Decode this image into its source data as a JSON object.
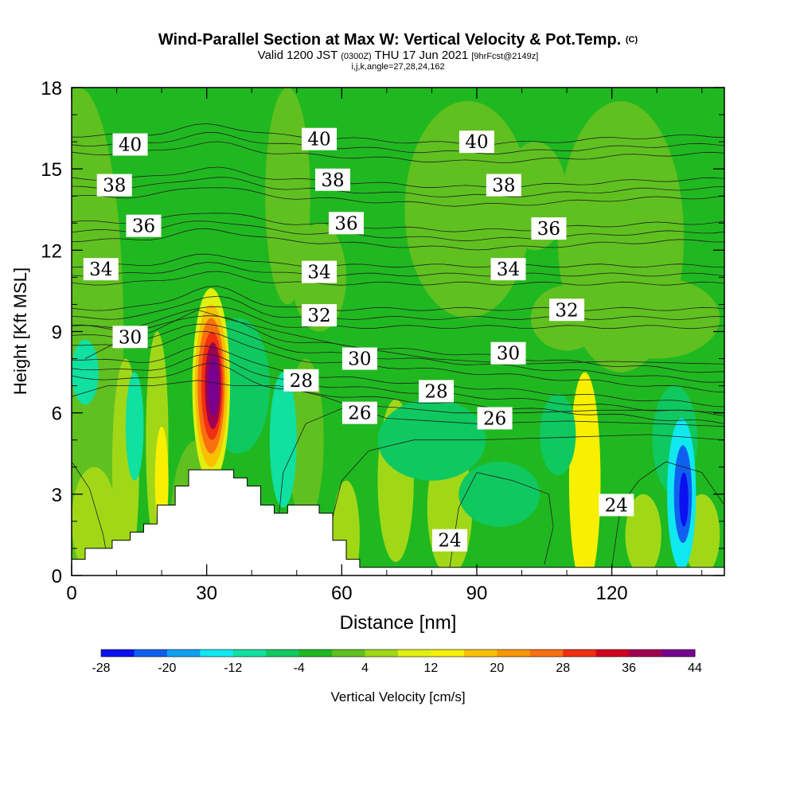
{
  "header": {
    "title": "Wind-Parallel Section at Max W: Vertical Velocity & Pot.Temp.",
    "title_mark": "(C)",
    "subtitle_pre": "Valid 1200 JST",
    "subtitle_z": "(0300Z)",
    "subtitle_mid": "THU 17 Jun 2021",
    "subtitle_fcst": "[9hrFcst@2149z]",
    "subtitle2": "i,j,k,angle=27,28,24,162"
  },
  "chart_data": {
    "type": "heatmap",
    "title": "Wind-Parallel Section at Max W: Vertical Velocity & Pot.Temp.",
    "xlabel": "Distance [nm]",
    "ylabel": "Height [Kft MSL]",
    "xlim": [
      0,
      145
    ],
    "ylim": [
      0,
      18
    ],
    "xticks": [
      "0",
      "30",
      "60",
      "90",
      "120"
    ],
    "yticks": [
      "0",
      "3",
      "6",
      "9",
      "12",
      "15",
      "18"
    ],
    "xtick_values": [
      0,
      30,
      60,
      90,
      120
    ],
    "ytick_values": [
      0,
      3,
      6,
      9,
      12,
      15,
      18
    ],
    "colorbar": {
      "label": "Vertical Velocity [cm/s]",
      "tick_labels": [
        "-28",
        "-20",
        "-12",
        "-4",
        "4",
        "12",
        "20",
        "28",
        "36",
        "44"
      ],
      "bounds": [
        -28,
        -24,
        -20,
        -16,
        -12,
        -8,
        -4,
        0,
        4,
        8,
        12,
        16,
        20,
        24,
        28,
        32,
        36,
        40,
        44
      ],
      "colors": [
        "#0a10f0",
        "#1060f0",
        "#10a0f0",
        "#10e8f0",
        "#10e0a0",
        "#10c860",
        "#20b820",
        "#60c020",
        "#a0d818",
        "#e0f010",
        "#f8f000",
        "#f8c000",
        "#f89800",
        "#f87010",
        "#f03010",
        "#d00020",
        "#a00050",
        "#780090"
      ]
    },
    "terrain": [
      [
        0,
        0
      ],
      [
        0,
        0.6
      ],
      [
        3,
        0.6
      ],
      [
        3,
        1.0
      ],
      [
        9,
        1.0
      ],
      [
        9,
        1.3
      ],
      [
        13,
        1.3
      ],
      [
        13,
        1.6
      ],
      [
        16,
        1.6
      ],
      [
        16,
        1.9
      ],
      [
        19,
        1.9
      ],
      [
        19,
        2.6
      ],
      [
        23,
        2.6
      ],
      [
        23,
        3.3
      ],
      [
        26,
        3.3
      ],
      [
        26,
        3.9
      ],
      [
        36,
        3.9
      ],
      [
        36,
        3.6
      ],
      [
        39,
        3.6
      ],
      [
        39,
        3.3
      ],
      [
        42,
        3.3
      ],
      [
        42,
        2.6
      ],
      [
        45,
        2.6
      ],
      [
        45,
        2.3
      ],
      [
        48,
        2.3
      ],
      [
        48,
        2.6
      ],
      [
        55,
        2.6
      ],
      [
        55,
        2.3
      ],
      [
        58,
        2.3
      ],
      [
        58,
        1.3
      ],
      [
        61,
        1.3
      ],
      [
        61,
        0.6
      ],
      [
        64,
        0.6
      ],
      [
        64,
        0.3
      ],
      [
        145,
        0.3
      ],
      [
        145,
        0
      ]
    ],
    "background_fill": -2,
    "w_features": [
      {
        "x": 1.5,
        "y": 9,
        "rx": 10,
        "ry": 9,
        "w": 2
      },
      {
        "x": 28,
        "y": 2,
        "rx": 6,
        "ry": 3,
        "w": 2
      },
      {
        "x": 48,
        "y": 14,
        "rx": 5,
        "ry": 4,
        "w": 2
      },
      {
        "x": 55,
        "y": 11,
        "rx": 6,
        "ry": 2,
        "w": 2
      },
      {
        "x": 88,
        "y": 13.5,
        "rx": 14,
        "ry": 4,
        "w": 2
      },
      {
        "x": 103,
        "y": 14,
        "rx": 7,
        "ry": 2,
        "w": 2
      },
      {
        "x": 122,
        "y": 12.5,
        "rx": 14,
        "ry": 5,
        "w": 2
      },
      {
        "x": 110,
        "y": 9.5,
        "rx": 8,
        "ry": 1.2,
        "w": 2
      },
      {
        "x": 130,
        "y": 9.5,
        "rx": 14,
        "ry": 1.5,
        "w": 2
      },
      {
        "x": 5,
        "y": 2,
        "rx": 5,
        "ry": 2,
        "w": 6
      },
      {
        "x": 12,
        "y": 4,
        "rx": 3,
        "ry": 4,
        "w": 6
      },
      {
        "x": 19,
        "y": 5,
        "rx": 2.5,
        "ry": 4,
        "w": 6
      },
      {
        "x": 52,
        "y": 5,
        "rx": 4,
        "ry": 3,
        "w": 2
      },
      {
        "x": 61,
        "y": 1.5,
        "rx": 3,
        "ry": 2,
        "w": 6
      },
      {
        "x": 72,
        "y": 3.5,
        "rx": 4,
        "ry": 3,
        "w": 6
      },
      {
        "x": 84,
        "y": 2.5,
        "rx": 5,
        "ry": 2.5,
        "w": 6
      },
      {
        "x": 114,
        "y": 3.5,
        "rx": 3.5,
        "ry": 4,
        "w": 12
      },
      {
        "x": 127,
        "y": 1.5,
        "rx": 4,
        "ry": 1.5,
        "w": 6
      },
      {
        "x": 140,
        "y": 1.5,
        "rx": 4,
        "ry": 1.5,
        "w": 6
      },
      {
        "x": 3,
        "y": 7.5,
        "rx": 3,
        "ry": 1.2,
        "w": -10
      },
      {
        "x": 14,
        "y": 5.5,
        "rx": 2,
        "ry": 2,
        "w": -10
      },
      {
        "x": 20,
        "y": 3.5,
        "rx": 1.5,
        "ry": 2,
        "w": 12
      },
      {
        "x": 37,
        "y": 7,
        "rx": 7,
        "ry": 2.5,
        "w": -8
      },
      {
        "x": 47,
        "y": 5,
        "rx": 3,
        "ry": 2.5,
        "w": -10
      },
      {
        "x": 80,
        "y": 5,
        "rx": 12,
        "ry": 1.5,
        "w": -6
      },
      {
        "x": 95,
        "y": 3,
        "rx": 9,
        "ry": 1.2,
        "w": -8
      },
      {
        "x": 108,
        "y": 5.2,
        "rx": 4,
        "ry": 1.5,
        "w": -6
      },
      {
        "x": 134,
        "y": 5,
        "rx": 5,
        "ry": 2,
        "w": -8
      },
      {
        "x": 135.5,
        "y": 3,
        "rx": 3.2,
        "ry": 2.8,
        "w": -14
      },
      {
        "x": 135.8,
        "y": 3,
        "rx": 2,
        "ry": 1.8,
        "w": -22
      },
      {
        "x": 136,
        "y": 2.8,
        "rx": 1,
        "ry": 1,
        "w": -27
      },
      {
        "x": 31,
        "y": 7,
        "rx": 4.2,
        "ry": 3.6,
        "w": 8
      },
      {
        "x": 31,
        "y": 7,
        "rx": 3.6,
        "ry": 3.0,
        "w": 16
      },
      {
        "x": 31,
        "y": 7,
        "rx": 3.0,
        "ry": 2.5,
        "w": 24
      },
      {
        "x": 31.2,
        "y": 7,
        "rx": 2.4,
        "ry": 2.0,
        "w": 30
      },
      {
        "x": 31.4,
        "y": 7,
        "rx": 1.8,
        "ry": 1.6,
        "w": 36
      },
      {
        "x": 31.5,
        "y": 7,
        "rx": 1.2,
        "ry": 1.1,
        "w": 41
      }
    ],
    "theta_levels": [
      24,
      26,
      28,
      30,
      32,
      34,
      36,
      38,
      40
    ],
    "theta_labels": [
      {
        "text": "40",
        "x": 13,
        "y": 15.9
      },
      {
        "text": "40",
        "x": 55,
        "y": 16.1
      },
      {
        "text": "40",
        "x": 90,
        "y": 16.0
      },
      {
        "text": "38",
        "x": 9.5,
        "y": 14.4
      },
      {
        "text": "38",
        "x": 58,
        "y": 14.6
      },
      {
        "text": "38",
        "x": 96,
        "y": 14.4
      },
      {
        "text": "36",
        "x": 16,
        "y": 12.9
      },
      {
        "text": "36",
        "x": 61,
        "y": 13.0
      },
      {
        "text": "36",
        "x": 106,
        "y": 12.8
      },
      {
        "text": "34",
        "x": 6.5,
        "y": 11.3
      },
      {
        "text": "34",
        "x": 55,
        "y": 11.2
      },
      {
        "text": "34",
        "x": 97,
        "y": 11.3
      },
      {
        "text": "32",
        "x": 55,
        "y": 9.6
      },
      {
        "text": "32",
        "x": 110,
        "y": 9.8
      },
      {
        "text": "30",
        "x": 13,
        "y": 8.8
      },
      {
        "text": "30",
        "x": 64,
        "y": 8.0
      },
      {
        "text": "30",
        "x": 97,
        "y": 8.2
      },
      {
        "text": "28",
        "x": 51,
        "y": 7.2
      },
      {
        "text": "28",
        "x": 81,
        "y": 6.8
      },
      {
        "text": "26",
        "x": 64,
        "y": 6.0
      },
      {
        "text": "26",
        "x": 94,
        "y": 5.8
      },
      {
        "text": "24",
        "x": 84,
        "y": 1.3
      },
      {
        "text": "24",
        "x": 121,
        "y": 2.6
      }
    ]
  }
}
